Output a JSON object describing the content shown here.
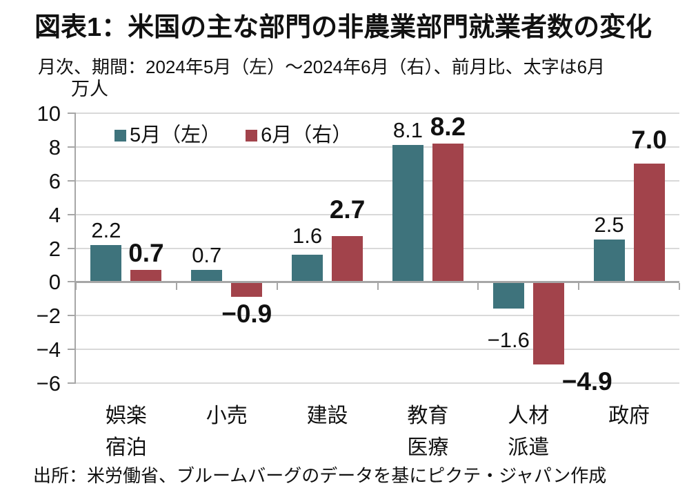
{
  "header": {
    "title": "図表1：米国の主な部門の非農業部門就業者数の変化",
    "subtitle": "月次、期間：2024年5月（左）～2024年6月（右）、前月比、太字は6月"
  },
  "chart_data": {
    "type": "bar",
    "title": "図表1：米国の主な部門の非農業部門就業者数の変化",
    "subtitle": "月次、期間：2024年5月（左）～2024年6月（右）、前月比、太字は6月",
    "unit_label": "万人",
    "categories": [
      "娯楽宿泊",
      "小売",
      "建設",
      "教育医療",
      "人材派遣",
      "政府"
    ],
    "category_label_lines": [
      [
        "娯楽",
        "宿泊"
      ],
      [
        "小売"
      ],
      [
        "建設"
      ],
      [
        "教育",
        "医療"
      ],
      [
        "人材",
        "派遣"
      ],
      [
        "政府"
      ]
    ],
    "series": [
      {
        "name": "5月（左）",
        "color": "#3E737C",
        "bold_labels": false,
        "values": [
          2.2,
          0.7,
          1.6,
          8.1,
          -1.6,
          2.5
        ]
      },
      {
        "name": "6月（右）",
        "color": "#A2434B",
        "bold_labels": true,
        "values": [
          0.7,
          -0.9,
          2.7,
          8.2,
          -4.9,
          7.0
        ]
      }
    ],
    "ylim": [
      -6,
      10
    ],
    "ytick_step": 2,
    "yticks": [
      10,
      8,
      6,
      4,
      2,
      0,
      -2,
      -4,
      -6
    ],
    "grid": true,
    "legend_position": "top-left-inside",
    "value_label_decimals": 1,
    "colors": {
      "grid": "#d9d9d9",
      "axis": "#a6a6a6",
      "text": "#111111",
      "may_bar": "#3E737C",
      "june_bar": "#A2434B"
    }
  },
  "footer": {
    "source": "出所：米労働省、ブルームバーグのデータを基にピクテ・ジャパン作成"
  }
}
